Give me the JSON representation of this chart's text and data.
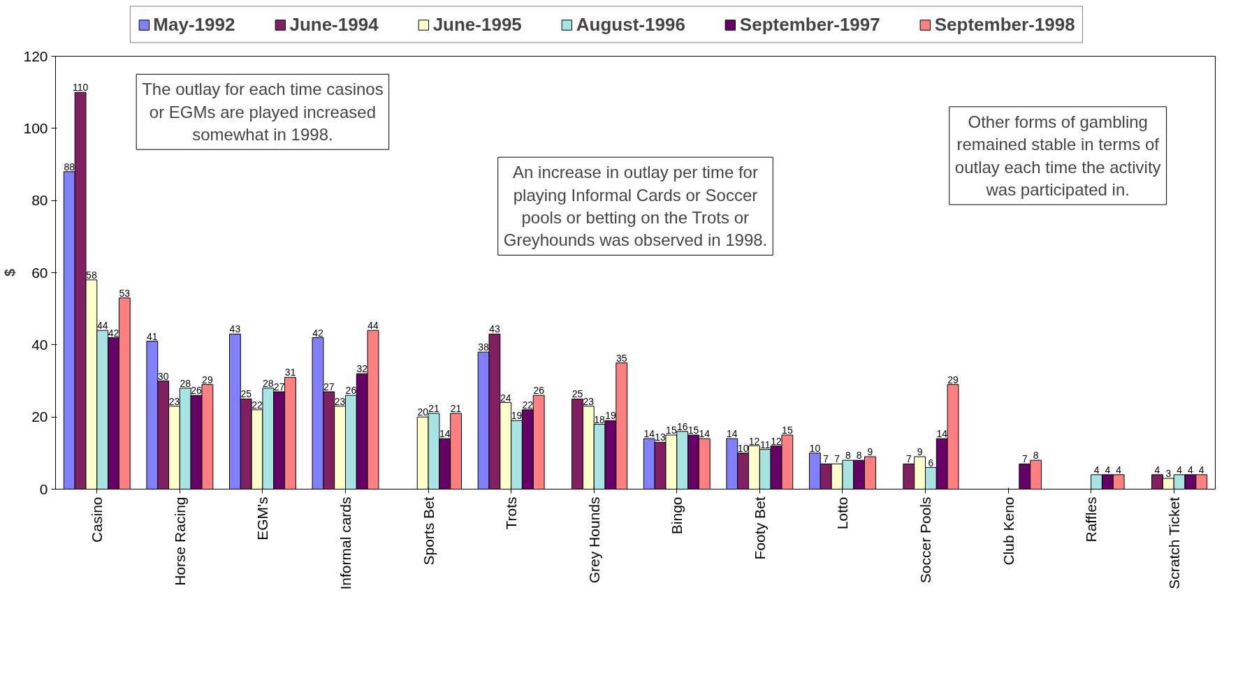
{
  "chart_data": {
    "type": "bar",
    "ylabel": "$",
    "categories": [
      "Casino",
      "Horse Racing",
      "EGM's",
      "Informal cards",
      "Sports Bet",
      "Trots",
      "Grey Hounds",
      "Bingo",
      "Footy Bet",
      "Lotto",
      "Soccer Pools",
      "Club Keno",
      "Raffles",
      "Scratch Ticket"
    ],
    "series": [
      {
        "name": "May-1992",
        "color": "#8080ff",
        "values": [
          88,
          41,
          43,
          42,
          null,
          38,
          null,
          14,
          14,
          10,
          null,
          null,
          null,
          null
        ]
      },
      {
        "name": "June-1994",
        "color": "#802060",
        "values": [
          110,
          30,
          25,
          27,
          null,
          43,
          25,
          13,
          10,
          7,
          7,
          null,
          null,
          4
        ]
      },
      {
        "name": "June-1995",
        "color": "#ffffcc",
        "values": [
          58,
          23,
          22,
          23,
          20,
          24,
          23,
          15,
          12,
          7,
          9,
          null,
          null,
          3
        ]
      },
      {
        "name": "August-1996",
        "color": "#a8e4e4",
        "values": [
          44,
          28,
          28,
          26,
          21,
          19,
          18,
          16,
          11,
          8,
          6,
          null,
          4,
          4
        ]
      },
      {
        "name": "September-1997",
        "color": "#660066",
        "values": [
          42,
          26,
          27,
          32,
          14,
          22,
          19,
          15,
          12,
          8,
          14,
          7,
          4,
          4
        ]
      },
      {
        "name": "September-1998",
        "color": "#ff8080",
        "values": [
          53,
          29,
          31,
          44,
          21,
          26,
          35,
          14,
          15,
          9,
          29,
          8,
          4,
          4
        ]
      }
    ],
    "ylim": [
      0,
      120
    ],
    "yticks": [
      0,
      20,
      40,
      60,
      80,
      100,
      120
    ],
    "grid": false,
    "legend": "top",
    "data_labels": true,
    "annotations": [
      "The outlay for each time casinos\nor EGMs are played increased\nsomewhat in 1998.",
      "An increase in outlay per time for\nplaying Informal Cards or Soccer\npools or betting on the Trots or\nGreyhounds was observed in 1998.",
      "Other forms of gambling\nremained stable in terms of\noutlay each time the activity\nwas participated in."
    ]
  }
}
